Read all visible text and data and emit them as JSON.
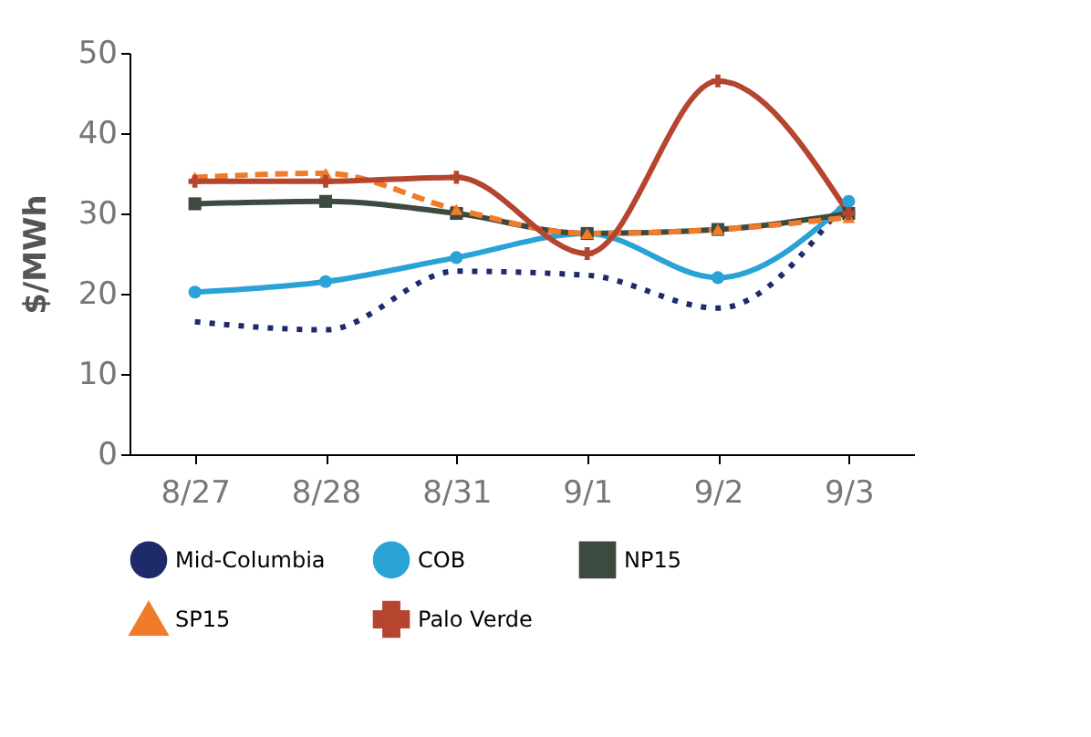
{
  "chart_data": {
    "type": "line",
    "ylabel": "$/MWh",
    "categories": [
      "8/27",
      "8/28",
      "8/31",
      "9/1",
      "9/2",
      "9/3"
    ],
    "ylim": [
      0,
      50
    ],
    "yticks": [
      0,
      10,
      20,
      30,
      40,
      50
    ],
    "grid": false,
    "legend": "bottom",
    "series": [
      {
        "name": "Mid-Columbia",
        "color": "#1f2a6b",
        "line_style": "dotted",
        "marker": "none",
        "values": [
          16.5,
          15.5,
          22.8,
          22.3,
          18.2,
          32
        ]
      },
      {
        "name": "COB",
        "color": "#29a3d6",
        "line_style": "solid",
        "marker": "circle",
        "values": [
          20.2,
          21.5,
          24.5,
          27.5,
          22,
          31.5
        ]
      },
      {
        "name": "NP15",
        "color": "#3d4a40",
        "line_style": "solid",
        "marker": "square",
        "values": [
          31.2,
          31.5,
          30,
          27.5,
          28,
          30
        ]
      },
      {
        "name": "SP15",
        "color": "#f07c2a",
        "line_style": "dashed",
        "marker": "triangle",
        "values": [
          34.5,
          35,
          30.5,
          27.5,
          28,
          29.5
        ]
      },
      {
        "name": "Palo Verde",
        "color": "#b5452e",
        "line_style": "solid",
        "marker": "cross",
        "values": [
          34,
          34,
          34.5,
          25,
          46.5,
          30
        ]
      }
    ]
  }
}
